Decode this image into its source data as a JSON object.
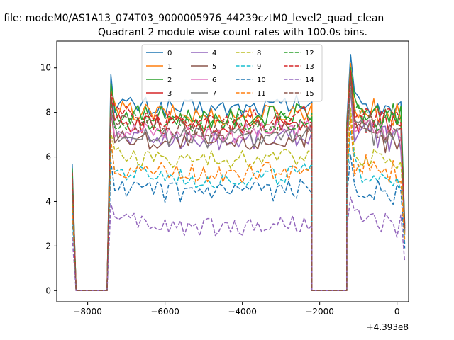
{
  "figure": {
    "suptitle": "n file: modeM0/AS1A13_074T03_9000005976_44239cztM0_level2_quad_clean",
    "title": "Quadrant 2 module wise count rates with 100.0s bins.",
    "offset_label": "+4.393e8"
  },
  "chart_data": {
    "type": "line",
    "title": "Quadrant 2 module wise count rates with 100.0s bins.",
    "xlabel": "",
    "ylabel": "",
    "x_offset": 439300000,
    "xlim": [
      -8800,
      300
    ],
    "ylim": [
      -0.5,
      11.2
    ],
    "grid": false,
    "legend_placement": "top-center",
    "legend_columns": 4,
    "x_ticks": [
      -8000,
      -6000,
      -4000,
      -2000,
      0
    ],
    "x_tick_labels": [
      "−8000",
      "−6000",
      "−4000",
      "−2000",
      "0"
    ],
    "y_ticks": [
      0,
      2,
      4,
      6,
      8,
      10
    ],
    "y_tick_labels": [
      "0",
      "2",
      "4",
      "6",
      "8",
      "10"
    ],
    "segments": [
      {
        "x_start": -8400,
        "x_end": -7500
      },
      {
        "x_start": -7400,
        "x_end": -2200
      },
      {
        "x_start": -2200,
        "x_end": -1300
      },
      {
        "x_start": -1300,
        "x_end": 200
      }
    ],
    "series": [
      {
        "name": "0",
        "color": "#1f77b4",
        "dash": "solid",
        "level": 8.4,
        "edge_start": 5.7,
        "peak_start": 9.7,
        "peak_end": 10.6,
        "edge_end": 3.0
      },
      {
        "name": "1",
        "color": "#ff7f0e",
        "dash": "solid",
        "level": 8.1,
        "edge_start": 5.2,
        "peak_start": 9.0,
        "peak_end": 10.2,
        "edge_end": 2.8
      },
      {
        "name": "2",
        "color": "#2ca02c",
        "dash": "solid",
        "level": 8.0,
        "edge_start": 5.5,
        "peak_start": 9.3,
        "peak_end": 10.0,
        "edge_end": 2.9
      },
      {
        "name": "3",
        "color": "#d62728",
        "dash": "solid",
        "level": 7.6,
        "edge_start": 5.0,
        "peak_start": 8.8,
        "peak_end": 9.8,
        "edge_end": 2.7
      },
      {
        "name": "4",
        "color": "#9467bd",
        "dash": "solid",
        "level": 7.0,
        "edge_start": 4.8,
        "peak_start": 8.0,
        "peak_end": 9.0,
        "edge_end": 2.6
      },
      {
        "name": "5",
        "color": "#8c564b",
        "dash": "solid",
        "level": 6.9,
        "edge_start": 4.8,
        "peak_start": 8.2,
        "peak_end": 9.2,
        "edge_end": 2.5
      },
      {
        "name": "6",
        "color": "#e377c2",
        "dash": "solid",
        "level": 7.3,
        "edge_start": 4.9,
        "peak_start": 8.3,
        "peak_end": 9.3,
        "edge_end": 2.6
      },
      {
        "name": "7",
        "color": "#7f7f7f",
        "dash": "solid",
        "level": 7.1,
        "edge_start": 4.8,
        "peak_start": 8.1,
        "peak_end": 9.0,
        "edge_end": 2.6
      },
      {
        "name": "8",
        "color": "#bcbd22",
        "dash": "dashed",
        "level": 6.1,
        "edge_start": 4.2,
        "peak_start": 7.1,
        "peak_end": 8.2,
        "edge_end": 2.3
      },
      {
        "name": "9",
        "color": "#17becf",
        "dash": "dashed",
        "level": 5.3,
        "edge_start": 3.8,
        "peak_start": 6.6,
        "peak_end": 7.2,
        "edge_end": 2.1
      },
      {
        "name": "10",
        "color": "#1f77b4",
        "dash": "dashed",
        "level": 4.6,
        "edge_start": 3.4,
        "peak_start": 5.8,
        "peak_end": 6.1,
        "edge_end": 1.9
      },
      {
        "name": "11",
        "color": "#ff7f0e",
        "dash": "dashed",
        "level": 5.5,
        "edge_start": 3.9,
        "peak_start": 6.8,
        "peak_end": 7.8,
        "edge_end": 2.2
      },
      {
        "name": "12",
        "color": "#2ca02c",
        "dash": "dashed",
        "level": 7.7,
        "edge_start": 5.1,
        "peak_start": 8.6,
        "peak_end": 9.4,
        "edge_end": 2.8
      },
      {
        "name": "13",
        "color": "#d62728",
        "dash": "dashed",
        "level": 7.9,
        "edge_start": 5.3,
        "peak_start": 8.9,
        "peak_end": 9.9,
        "edge_end": 2.8
      },
      {
        "name": "14",
        "color": "#9467bd",
        "dash": "dashed",
        "level": 3.1,
        "edge_start": 2.4,
        "peak_start": 3.9,
        "peak_end": 4.2,
        "edge_end": 1.3
      },
      {
        "name": "15",
        "color": "#8c564b",
        "dash": "dashed",
        "level": 7.5,
        "edge_start": 5.0,
        "peak_start": 8.6,
        "peak_end": 9.6,
        "edge_end": 2.7
      }
    ]
  }
}
